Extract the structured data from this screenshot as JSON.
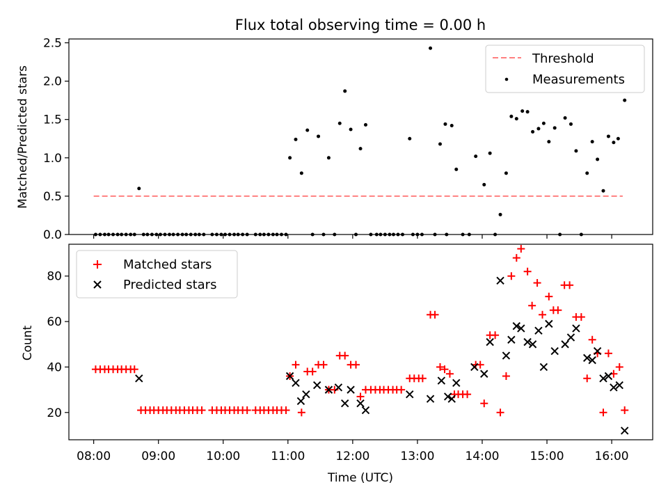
{
  "title": "Flux total observing time = 0.00 h",
  "colors": {
    "threshold": "#ff7f7f",
    "measurement": "#000000",
    "matched": "#ff0000",
    "predicted": "#000000"
  },
  "chart_data": [
    {
      "type": "scatter",
      "panel": "top",
      "title": "Flux total observing time = 0.00 h",
      "xlabel": "",
      "ylabel": "Matched/Predicted stars",
      "xlim": [
        7.617,
        16.633
      ],
      "ylim": [
        0,
        2.55
      ],
      "yticks": [
        0.0,
        0.5,
        1.0,
        1.5,
        2.0,
        2.5
      ],
      "yticklabels": [
        "0.0",
        "0.5",
        "1.0",
        "1.5",
        "2.0",
        "2.5"
      ],
      "xticks": [
        8,
        9,
        10,
        11,
        12,
        13,
        14,
        15,
        16
      ],
      "legend_position": "top-right",
      "threshold": {
        "name": "Threshold",
        "value": 0.5,
        "x_range": [
          8.0,
          16.17
        ]
      },
      "series": [
        {
          "name": "Measurements",
          "points": [
            [
              8.03,
              0
            ],
            [
              8.1,
              0
            ],
            [
              8.17,
              0
            ],
            [
              8.23,
              0
            ],
            [
              8.3,
              0
            ],
            [
              8.37,
              0
            ],
            [
              8.43,
              0
            ],
            [
              8.5,
              0
            ],
            [
              8.57,
              0
            ],
            [
              8.63,
              0
            ],
            [
              8.7,
              0.6
            ],
            [
              8.77,
              0
            ],
            [
              8.83,
              0
            ],
            [
              8.9,
              0
            ],
            [
              8.97,
              0
            ],
            [
              9.03,
              0
            ],
            [
              9.1,
              0
            ],
            [
              9.17,
              0
            ],
            [
              9.23,
              0
            ],
            [
              9.3,
              0
            ],
            [
              9.37,
              0
            ],
            [
              9.43,
              0
            ],
            [
              9.5,
              0
            ],
            [
              9.57,
              0
            ],
            [
              9.63,
              0
            ],
            [
              9.7,
              0
            ],
            [
              9.83,
              0
            ],
            [
              9.9,
              0
            ],
            [
              9.97,
              0
            ],
            [
              10.03,
              0
            ],
            [
              10.1,
              0
            ],
            [
              10.17,
              0
            ],
            [
              10.23,
              0
            ],
            [
              10.3,
              0
            ],
            [
              10.37,
              0
            ],
            [
              10.5,
              0
            ],
            [
              10.57,
              0
            ],
            [
              10.63,
              0
            ],
            [
              10.7,
              0
            ],
            [
              10.77,
              0
            ],
            [
              10.83,
              0
            ],
            [
              10.9,
              0
            ],
            [
              10.97,
              0
            ],
            [
              11.03,
              1.0
            ],
            [
              11.12,
              1.24
            ],
            [
              11.21,
              0.8
            ],
            [
              11.3,
              1.36
            ],
            [
              11.38,
              0
            ],
            [
              11.47,
              1.28
            ],
            [
              11.55,
              0
            ],
            [
              11.63,
              1.0
            ],
            [
              11.72,
              0
            ],
            [
              11.8,
              1.45
            ],
            [
              11.88,
              1.87
            ],
            [
              11.97,
              1.37
            ],
            [
              12.05,
              0
            ],
            [
              12.12,
              1.12
            ],
            [
              12.2,
              1.43
            ],
            [
              12.28,
              0
            ],
            [
              12.37,
              0
            ],
            [
              12.43,
              0
            ],
            [
              12.5,
              0
            ],
            [
              12.57,
              0
            ],
            [
              12.63,
              0
            ],
            [
              12.7,
              0
            ],
            [
              12.77,
              0
            ],
            [
              12.88,
              1.25
            ],
            [
              12.93,
              0
            ],
            [
              13.0,
              0
            ],
            [
              13.07,
              0
            ],
            [
              13.2,
              2.43
            ],
            [
              13.27,
              0
            ],
            [
              13.35,
              1.18
            ],
            [
              13.43,
              1.44
            ],
            [
              13.45,
              0
            ],
            [
              13.53,
              1.42
            ],
            [
              13.6,
              0.85
            ],
            [
              13.7,
              0
            ],
            [
              13.8,
              0
            ],
            [
              13.9,
              1.02
            ],
            [
              14.03,
              0.65
            ],
            [
              14.12,
              1.06
            ],
            [
              14.2,
              0
            ],
            [
              14.28,
              0.26
            ],
            [
              14.37,
              0.8
            ],
            [
              14.45,
              1.54
            ],
            [
              14.53,
              1.51
            ],
            [
              14.62,
              1.61
            ],
            [
              14.7,
              1.6
            ],
            [
              14.78,
              1.34
            ],
            [
              14.87,
              1.38
            ],
            [
              14.95,
              1.45
            ],
            [
              15.03,
              1.21
            ],
            [
              15.12,
              1.39
            ],
            [
              15.2,
              0
            ],
            [
              15.28,
              1.52
            ],
            [
              15.37,
              1.44
            ],
            [
              15.45,
              1.09
            ],
            [
              15.53,
              0
            ],
            [
              15.62,
              0.8
            ],
            [
              15.7,
              1.21
            ],
            [
              15.78,
              0.98
            ],
            [
              15.87,
              0.57
            ],
            [
              15.95,
              1.28
            ],
            [
              16.03,
              1.2
            ],
            [
              16.1,
              1.25
            ],
            [
              16.2,
              1.75
            ]
          ]
        }
      ]
    },
    {
      "type": "scatter",
      "panel": "bottom",
      "title": "",
      "xlabel": "Time (UTC)",
      "ylabel": "Count",
      "xlim": [
        7.617,
        16.633
      ],
      "ylim": [
        8,
        94
      ],
      "yticks": [
        20,
        40,
        60,
        80
      ],
      "yticklabels": [
        "20",
        "40",
        "60",
        "80"
      ],
      "xticks": [
        8,
        9,
        10,
        11,
        12,
        13,
        14,
        15,
        16
      ],
      "xticklabels": [
        "08:00",
        "09:00",
        "10:00",
        "11:00",
        "12:00",
        "13:00",
        "14:00",
        "15:00",
        "16:00"
      ],
      "legend_position": "top-left",
      "series": [
        {
          "name": "Matched stars",
          "marker": "plus",
          "points": [
            [
              8.03,
              39
            ],
            [
              8.1,
              39
            ],
            [
              8.17,
              39
            ],
            [
              8.23,
              39
            ],
            [
              8.3,
              39
            ],
            [
              8.37,
              39
            ],
            [
              8.43,
              39
            ],
            [
              8.5,
              39
            ],
            [
              8.57,
              39
            ],
            [
              8.63,
              39
            ],
            [
              8.73,
              21
            ],
            [
              8.8,
              21
            ],
            [
              8.87,
              21
            ],
            [
              8.93,
              21
            ],
            [
              9.0,
              21
            ],
            [
              9.07,
              21
            ],
            [
              9.13,
              21
            ],
            [
              9.2,
              21
            ],
            [
              9.27,
              21
            ],
            [
              9.33,
              21
            ],
            [
              9.4,
              21
            ],
            [
              9.47,
              21
            ],
            [
              9.53,
              21
            ],
            [
              9.6,
              21
            ],
            [
              9.67,
              21
            ],
            [
              9.83,
              21
            ],
            [
              9.9,
              21
            ],
            [
              9.97,
              21
            ],
            [
              10.03,
              21
            ],
            [
              10.1,
              21
            ],
            [
              10.17,
              21
            ],
            [
              10.23,
              21
            ],
            [
              10.3,
              21
            ],
            [
              10.37,
              21
            ],
            [
              10.5,
              21
            ],
            [
              10.57,
              21
            ],
            [
              10.63,
              21
            ],
            [
              10.7,
              21
            ],
            [
              10.77,
              21
            ],
            [
              10.83,
              21
            ],
            [
              10.9,
              21
            ],
            [
              10.97,
              21
            ],
            [
              11.03,
              36
            ],
            [
              11.12,
              41
            ],
            [
              11.21,
              20
            ],
            [
              11.3,
              38
            ],
            [
              11.38,
              38
            ],
            [
              11.47,
              41
            ],
            [
              11.55,
              41
            ],
            [
              11.63,
              30
            ],
            [
              11.72,
              30
            ],
            [
              11.8,
              45
            ],
            [
              11.88,
              45
            ],
            [
              11.97,
              41
            ],
            [
              12.05,
              41
            ],
            [
              12.12,
              27
            ],
            [
              12.2,
              30
            ],
            [
              12.28,
              30
            ],
            [
              12.35,
              30
            ],
            [
              12.42,
              30
            ],
            [
              12.48,
              30
            ],
            [
              12.55,
              30
            ],
            [
              12.62,
              30
            ],
            [
              12.68,
              30
            ],
            [
              12.75,
              30
            ],
            [
              12.88,
              35
            ],
            [
              12.95,
              35
            ],
            [
              13.02,
              35
            ],
            [
              13.08,
              35
            ],
            [
              13.2,
              63
            ],
            [
              13.27,
              63
            ],
            [
              13.35,
              40
            ],
            [
              13.42,
              39
            ],
            [
              13.5,
              37
            ],
            [
              13.57,
              28
            ],
            [
              13.63,
              28
            ],
            [
              13.7,
              28
            ],
            [
              13.77,
              28
            ],
            [
              13.9,
              41
            ],
            [
              13.97,
              41
            ],
            [
              14.03,
              24
            ],
            [
              14.12,
              54
            ],
            [
              14.2,
              54
            ],
            [
              14.28,
              20
            ],
            [
              14.37,
              36
            ],
            [
              14.45,
              80
            ],
            [
              14.53,
              88
            ],
            [
              14.6,
              92
            ],
            [
              14.7,
              82
            ],
            [
              14.77,
              67
            ],
            [
              14.85,
              77
            ],
            [
              14.93,
              63
            ],
            [
              15.03,
              71
            ],
            [
              15.1,
              65
            ],
            [
              15.17,
              65
            ],
            [
              15.27,
              76
            ],
            [
              15.35,
              76
            ],
            [
              15.45,
              62
            ],
            [
              15.53,
              62
            ],
            [
              15.62,
              35
            ],
            [
              15.7,
              52
            ],
            [
              15.78,
              46
            ],
            [
              15.87,
              20
            ],
            [
              15.95,
              46
            ],
            [
              16.03,
              37
            ],
            [
              16.12,
              40
            ],
            [
              16.2,
              21
            ]
          ]
        },
        {
          "name": "Predicted stars",
          "marker": "x",
          "points": [
            [
              8.7,
              35
            ],
            [
              11.03,
              36
            ],
            [
              11.12,
              33
            ],
            [
              11.2,
              25
            ],
            [
              11.28,
              28
            ],
            [
              11.45,
              32
            ],
            [
              11.63,
              30
            ],
            [
              11.78,
              31
            ],
            [
              11.88,
              24
            ],
            [
              11.97,
              30
            ],
            [
              12.12,
              24
            ],
            [
              12.2,
              21
            ],
            [
              12.88,
              28
            ],
            [
              13.2,
              26
            ],
            [
              13.37,
              34
            ],
            [
              13.47,
              27
            ],
            [
              13.53,
              26
            ],
            [
              13.6,
              33
            ],
            [
              13.88,
              40
            ],
            [
              14.03,
              37
            ],
            [
              14.12,
              51
            ],
            [
              14.28,
              78
            ],
            [
              14.37,
              45
            ],
            [
              14.45,
              52
            ],
            [
              14.53,
              58
            ],
            [
              14.6,
              57
            ],
            [
              14.7,
              51
            ],
            [
              14.78,
              50
            ],
            [
              14.87,
              56
            ],
            [
              14.95,
              40
            ],
            [
              15.03,
              59
            ],
            [
              15.12,
              47
            ],
            [
              15.28,
              50
            ],
            [
              15.37,
              53
            ],
            [
              15.45,
              57
            ],
            [
              15.62,
              44
            ],
            [
              15.7,
              43
            ],
            [
              15.78,
              47
            ],
            [
              15.87,
              35
            ],
            [
              15.95,
              36
            ],
            [
              16.03,
              31
            ],
            [
              16.12,
              32
            ],
            [
              16.2,
              12
            ]
          ]
        }
      ]
    }
  ]
}
